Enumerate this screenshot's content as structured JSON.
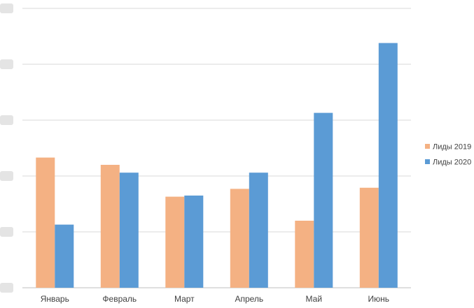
{
  "chart_data": {
    "type": "bar",
    "categories": [
      "Январь",
      "Февраль",
      "Март",
      "Апрель",
      "Май",
      "Июнь"
    ],
    "series": [
      {
        "name": "Лиды 2019",
        "color": "#F4B183",
        "values": [
          23.3,
          22.0,
          16.3,
          17.7,
          12.0,
          17.9
        ]
      },
      {
        "name": "Лиды 2020",
        "color": "#5B9BD5",
        "values": [
          11.3,
          20.6,
          16.5,
          20.6,
          31.3,
          43.8
        ]
      }
    ],
    "ylim": [
      0,
      50
    ],
    "grid": true,
    "legend_position": "right",
    "y_tick_labels_visible": false
  }
}
